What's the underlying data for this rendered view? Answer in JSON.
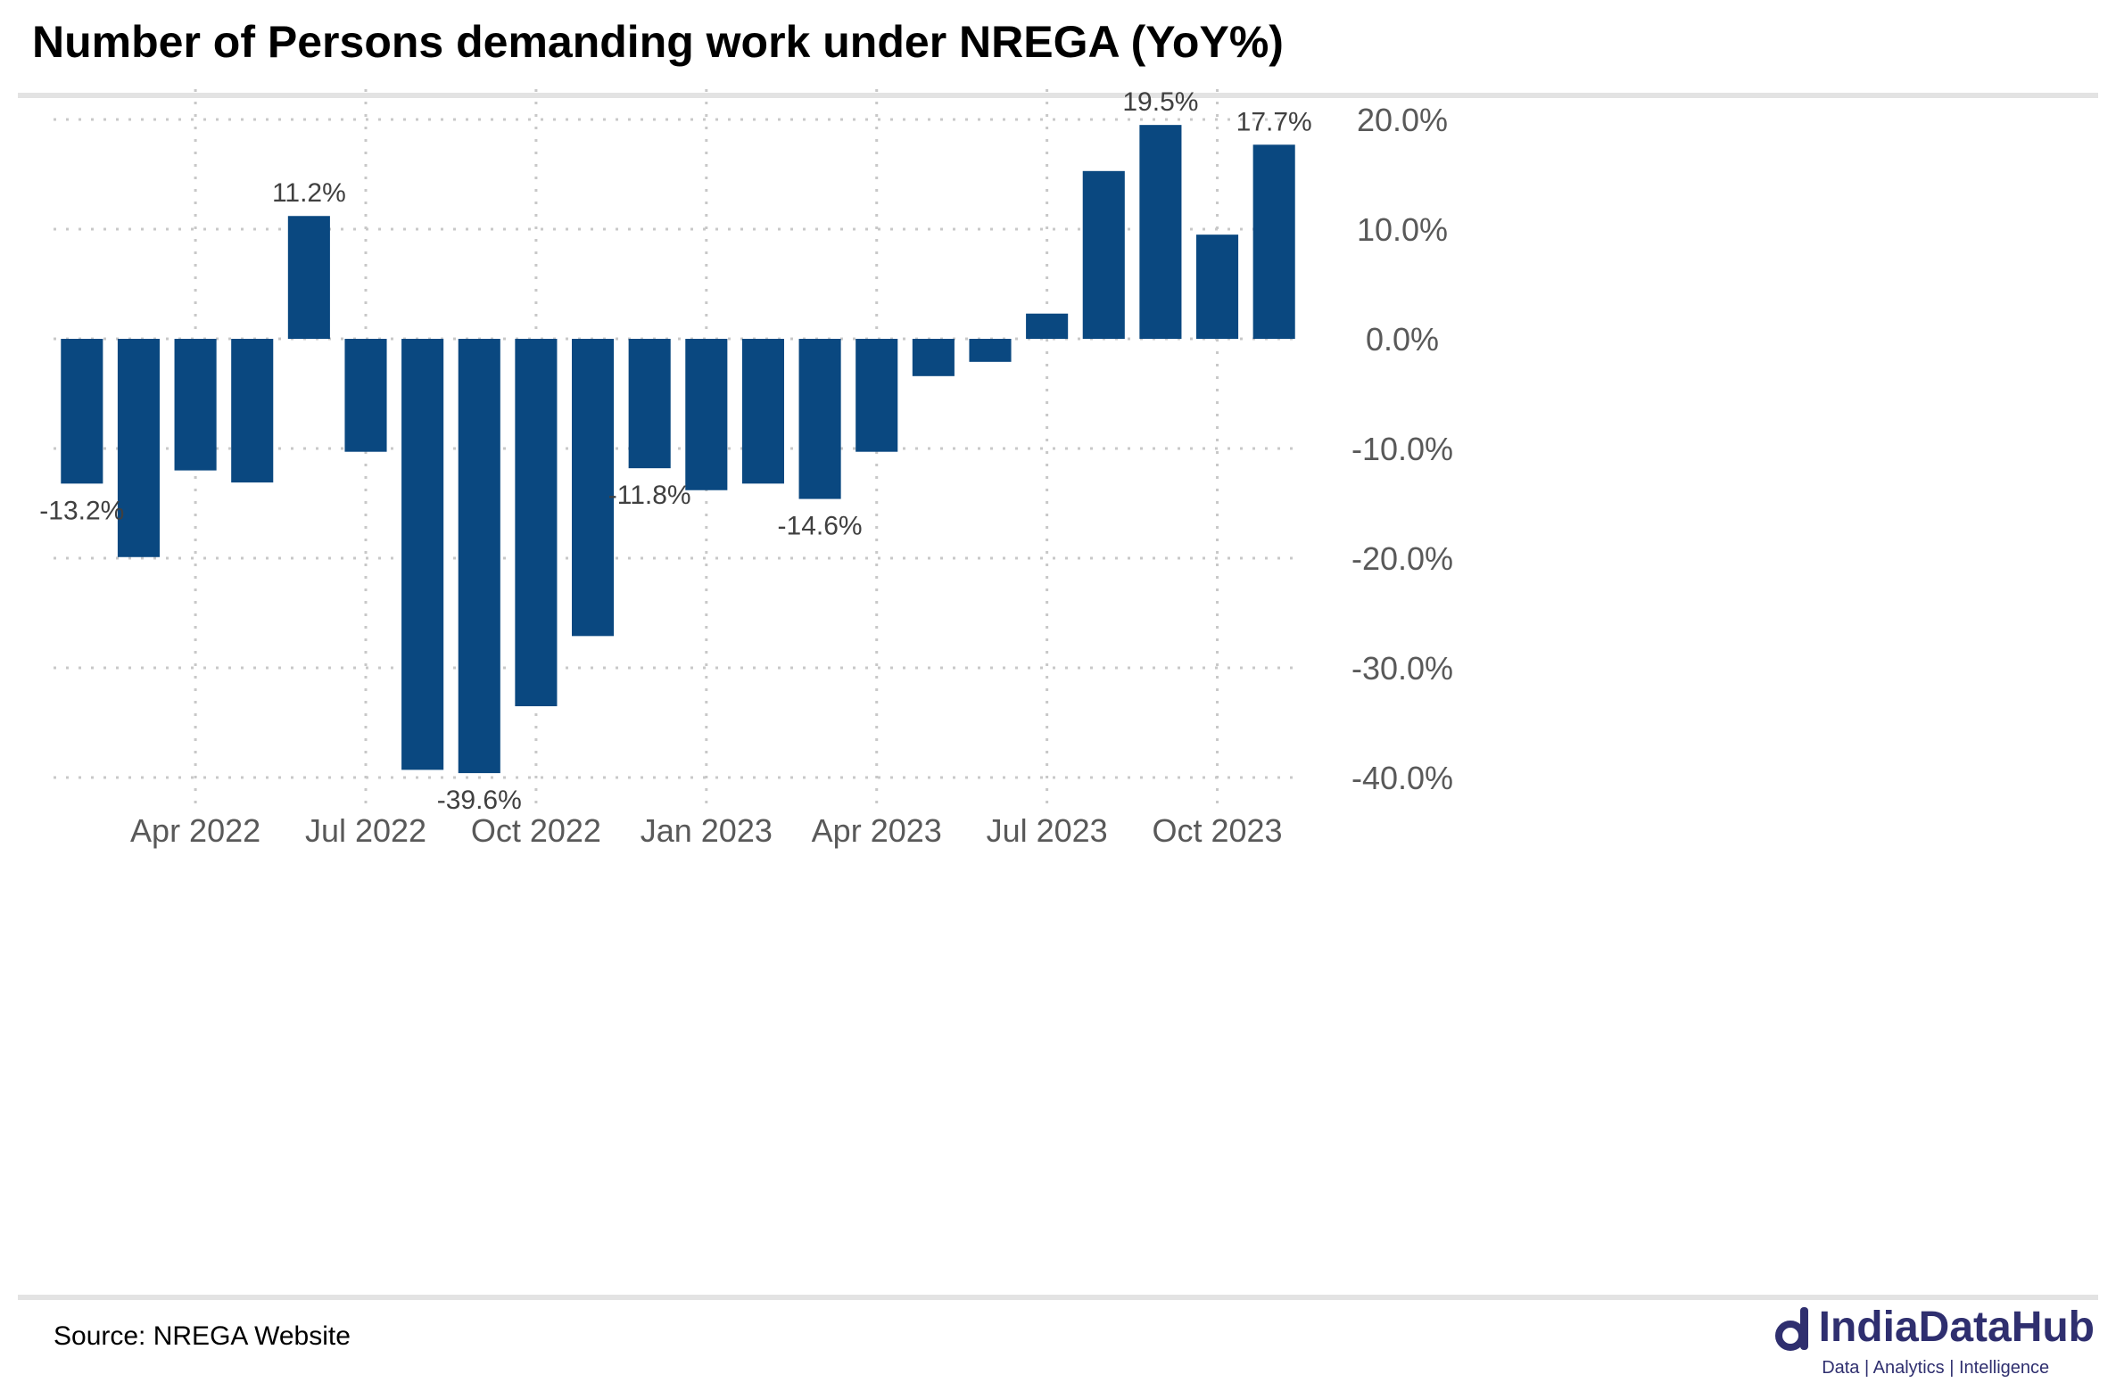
{
  "title": "Number of Persons demanding work under NREGA (YoY%)",
  "source": "Source: NREGA Website",
  "brand": {
    "name": "IndiaDataHub",
    "tagline": "Data | Analytics | Intelligence",
    "color": "#2f2f6f"
  },
  "chart_data": {
    "type": "bar",
    "bar_color": "#0a4880",
    "categories": [
      "Feb 2022",
      "Mar 2022",
      "Apr 2022",
      "May 2022",
      "Jun 2022",
      "Jul 2022",
      "Aug 2022",
      "Sep 2022",
      "Oct 2022",
      "Nov 2022",
      "Dec 2022",
      "Jan 2023",
      "Feb 2023",
      "Mar 2023",
      "Apr 2023",
      "May 2023",
      "Jun 2023",
      "Jul 2023",
      "Aug 2023",
      "Sep 2023",
      "Oct 2023",
      "Nov 2023"
    ],
    "values": [
      -13.2,
      -19.9,
      -12.0,
      -13.1,
      11.2,
      -10.3,
      -39.3,
      -39.6,
      -33.5,
      -27.1,
      -11.8,
      -13.8,
      -13.2,
      -14.6,
      -10.3,
      -3.4,
      -2.1,
      2.3,
      15.3,
      19.5,
      9.5,
      17.7
    ],
    "data_labels": [
      {
        "index": 0,
        "text": "-13.2%"
      },
      {
        "index": 4,
        "text": "11.2%"
      },
      {
        "index": 7,
        "text": "-39.6%"
      },
      {
        "index": 10,
        "text": "-11.8%"
      },
      {
        "index": 13,
        "text": "-14.6%"
      },
      {
        "index": 19,
        "text": "19.5%"
      },
      {
        "index": 21,
        "text": "17.7%"
      }
    ],
    "x_ticks": [
      {
        "index": 2,
        "label": "Apr 2022"
      },
      {
        "index": 5,
        "label": "Jul 2022"
      },
      {
        "index": 8,
        "label": "Oct 2022"
      },
      {
        "index": 11,
        "label": "Jan 2023"
      },
      {
        "index": 14,
        "label": "Apr 2023"
      },
      {
        "index": 17,
        "label": "Jul 2023"
      },
      {
        "index": 20,
        "label": "Oct 2023"
      }
    ],
    "y_ticks": [
      20,
      10,
      0,
      -10,
      -20,
      -30,
      -40
    ],
    "y_tick_labels": [
      "20.0%",
      "10.0%",
      "0.0%",
      "-10.0%",
      "-20.0%",
      "-30.0%",
      "-40.0%"
    ],
    "ylim": [
      -43,
      23
    ],
    "grid": true,
    "y_axis_position": "right",
    "xlabel": "",
    "ylabel": ""
  }
}
